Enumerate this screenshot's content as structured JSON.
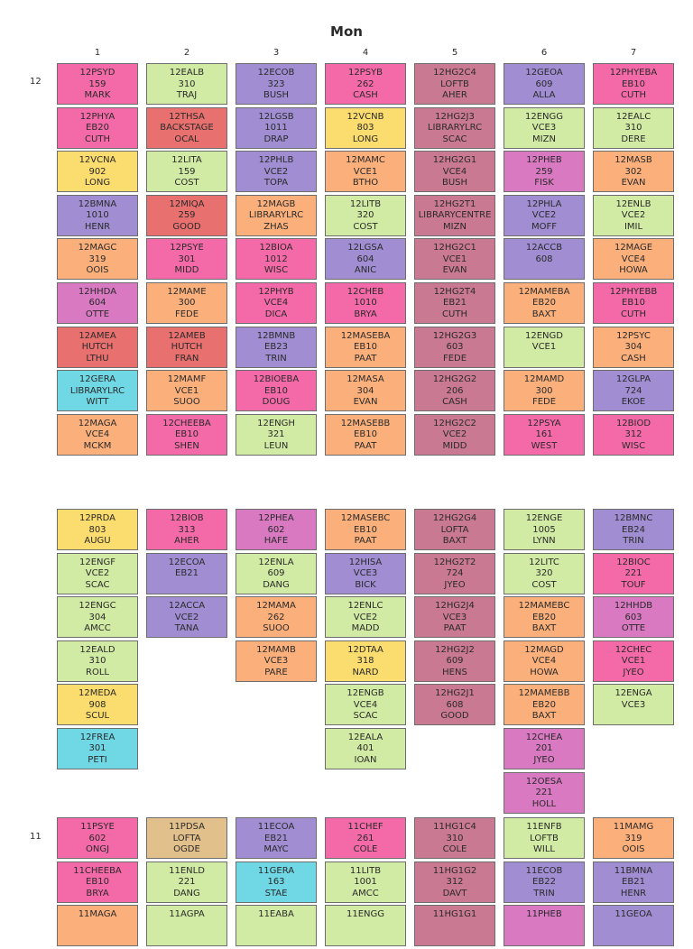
{
  "title": "Mon",
  "colors": {
    "pink": "#f46aa8",
    "green": "#d2eba4",
    "purple": "#a08dd2",
    "salmon": "#e8706e",
    "yellow": "#fbdc6e",
    "orange": "#fbb07c",
    "mauve": "#c97991",
    "magenta": "#d879c2",
    "cyan": "#6fd8e4",
    "tan": "#e2c08c"
  },
  "column_numbers": [
    "1",
    "2",
    "3",
    "4",
    "5",
    "6",
    "7"
  ],
  "groups": [
    {
      "label": "12",
      "columns": [
        [
          {
            "c": "pink",
            "l": [
              "12PSYD",
              "159",
              "MARK"
            ]
          },
          {
            "c": "pink",
            "l": [
              "12PHYA",
              "EB20",
              "CUTH"
            ]
          },
          {
            "c": "yellow",
            "l": [
              "12VCNA",
              "902",
              "LONG"
            ]
          },
          {
            "c": "purple",
            "l": [
              "12BMNA",
              "1010",
              "HENR"
            ]
          },
          {
            "c": "orange",
            "l": [
              "12MAGC",
              "319",
              "OOIS"
            ]
          },
          {
            "c": "magenta",
            "l": [
              "12HHDA",
              "604",
              "OTTE"
            ]
          },
          {
            "c": "salmon",
            "l": [
              "12AMEA",
              "HUTCH",
              "LTHU"
            ]
          },
          {
            "c": "cyan",
            "l": [
              "12GERA",
              "LIBRARYLRC",
              "WITT"
            ]
          },
          {
            "c": "orange",
            "l": [
              "12MAGA",
              "VCE4",
              "MCKM"
            ]
          }
        ],
        [
          {
            "c": "green",
            "l": [
              "12EALB",
              "310",
              "TRAJ"
            ]
          },
          {
            "c": "salmon",
            "l": [
              "12THSA",
              "BACKSTAGE",
              "OCAL"
            ]
          },
          {
            "c": "green",
            "l": [
              "12LITA",
              "159",
              "COST"
            ]
          },
          {
            "c": "salmon",
            "l": [
              "12MIQA",
              "259",
              "GOOD"
            ]
          },
          {
            "c": "pink",
            "l": [
              "12PSYE",
              "301",
              "MIDD"
            ]
          },
          {
            "c": "orange",
            "l": [
              "12MAME",
              "300",
              "FEDE"
            ]
          },
          {
            "c": "salmon",
            "l": [
              "12AMEB",
              "HUTCH",
              "FRAN"
            ]
          },
          {
            "c": "orange",
            "l": [
              "12MAMF",
              "VCE1",
              "SUOO"
            ]
          },
          {
            "c": "pink",
            "l": [
              "12CHEEBA",
              "EB10",
              "SHEN"
            ]
          }
        ],
        [
          {
            "c": "purple",
            "l": [
              "12ECOB",
              "323",
              "BUSH"
            ]
          },
          {
            "c": "purple",
            "l": [
              "12LGSB",
              "1011",
              "DRAP"
            ]
          },
          {
            "c": "purple",
            "l": [
              "12PHLB",
              "VCE2",
              "TOPA"
            ]
          },
          {
            "c": "orange",
            "l": [
              "12MAGB",
              "LIBRARYLRC",
              "ZHAS"
            ]
          },
          {
            "c": "pink",
            "l": [
              "12BIOA",
              "1012",
              "WISC"
            ]
          },
          {
            "c": "pink",
            "l": [
              "12PHYB",
              "VCE4",
              "DICA"
            ]
          },
          {
            "c": "purple",
            "l": [
              "12BMNB",
              "EB23",
              "TRIN"
            ]
          },
          {
            "c": "pink",
            "l": [
              "12BIOEBA",
              "EB10",
              "DOUG"
            ]
          },
          {
            "c": "green",
            "l": [
              "12ENGH",
              "321",
              "LEUN"
            ]
          }
        ],
        [
          {
            "c": "pink",
            "l": [
              "12PSYB",
              "262",
              "CASH"
            ]
          },
          {
            "c": "yellow",
            "l": [
              "12VCNB",
              "803",
              "LONG"
            ]
          },
          {
            "c": "orange",
            "l": [
              "12MAMC",
              "VCE1",
              "BTHO"
            ]
          },
          {
            "c": "green",
            "l": [
              "12LITB",
              "320",
              "COST"
            ]
          },
          {
            "c": "purple",
            "l": [
              "12LGSA",
              "604",
              "ANIC"
            ]
          },
          {
            "c": "pink",
            "l": [
              "12CHEB",
              "1010",
              "BRYA"
            ]
          },
          {
            "c": "orange",
            "l": [
              "12MASEBA",
              "EB10",
              "PAAT"
            ]
          },
          {
            "c": "orange",
            "l": [
              "12MASA",
              "304",
              "EVAN"
            ]
          },
          {
            "c": "orange",
            "l": [
              "12MASEBB",
              "EB10",
              "PAAT"
            ]
          }
        ],
        [
          {
            "c": "mauve",
            "l": [
              "12HG2C4",
              "LOFTB",
              "AHER"
            ]
          },
          {
            "c": "mauve",
            "l": [
              "12HG2J3",
              "LIBRARYLRC",
              "SCAC"
            ]
          },
          {
            "c": "mauve",
            "l": [
              "12HG2G1",
              "VCE4",
              "BUSH"
            ]
          },
          {
            "c": "mauve",
            "l": [
              "12HG2T1",
              "LIBRARYCENTRE",
              "MIZN"
            ]
          },
          {
            "c": "mauve",
            "l": [
              "12HG2C1",
              "VCE1",
              "EVAN"
            ]
          },
          {
            "c": "mauve",
            "l": [
              "12HG2T4",
              "EB21",
              "CUTH"
            ]
          },
          {
            "c": "mauve",
            "l": [
              "12HG2G3",
              "603",
              "FEDE"
            ]
          },
          {
            "c": "mauve",
            "l": [
              "12HG2G2",
              "206",
              "CASH"
            ]
          },
          {
            "c": "mauve",
            "l": [
              "12HG2C2",
              "VCE2",
              "MIDD"
            ]
          }
        ],
        [
          {
            "c": "purple",
            "l": [
              "12GEOA",
              "609",
              "ALLA"
            ]
          },
          {
            "c": "green",
            "l": [
              "12ENGG",
              "VCE3",
              "MIZN"
            ]
          },
          {
            "c": "magenta",
            "l": [
              "12PHEB",
              "259",
              "FISK"
            ]
          },
          {
            "c": "purple",
            "l": [
              "12PHLA",
              "VCE2",
              "MOFF"
            ]
          },
          {
            "c": "purple",
            "l": [
              "12ACCB",
              "608",
              ""
            ]
          },
          {
            "c": "orange",
            "l": [
              "12MAMEBA",
              "EB20",
              "BAXT"
            ]
          },
          {
            "c": "green",
            "l": [
              "12ENGD",
              "VCE1",
              ""
            ]
          },
          {
            "c": "orange",
            "l": [
              "12MAMD",
              "300",
              "FEDE"
            ]
          },
          {
            "c": "pink",
            "l": [
              "12PSYA",
              "161",
              "WEST"
            ]
          }
        ],
        [
          {
            "c": "pink",
            "l": [
              "12PHYEBA",
              "EB10",
              "CUTH"
            ]
          },
          {
            "c": "green",
            "l": [
              "12EALC",
              "310",
              "DERE"
            ]
          },
          {
            "c": "orange",
            "l": [
              "12MASB",
              "302",
              "EVAN"
            ]
          },
          {
            "c": "green",
            "l": [
              "12ENLB",
              "VCE2",
              "IMIL"
            ]
          },
          {
            "c": "orange",
            "l": [
              "12MAGE",
              "VCE4",
              "HOWA"
            ]
          },
          {
            "c": "pink",
            "l": [
              "12PHYEBB",
              "EB10",
              "CUTH"
            ]
          },
          {
            "c": "orange",
            "l": [
              "12PSYC",
              "304",
              "CASH"
            ]
          },
          {
            "c": "purple",
            "l": [
              "12GLPA",
              "724",
              "EKOE"
            ]
          },
          {
            "c": "pink",
            "l": [
              "12BIOD",
              "312",
              "WISC"
            ]
          }
        ]
      ]
    },
    {
      "label": "",
      "columns": [
        [
          {
            "c": "yellow",
            "l": [
              "12PRDA",
              "803",
              "AUGU"
            ]
          },
          {
            "c": "green",
            "l": [
              "12ENGF",
              "VCE2",
              "SCAC"
            ]
          },
          {
            "c": "green",
            "l": [
              "12ENGC",
              "304",
              "AMCC"
            ]
          },
          {
            "c": "green",
            "l": [
              "12EALD",
              "310",
              "ROLL"
            ]
          },
          {
            "c": "yellow",
            "l": [
              "12MEDA",
              "908",
              "SCUL"
            ]
          },
          {
            "c": "cyan",
            "l": [
              "12FREA",
              "301",
              "PETI"
            ]
          }
        ],
        [
          {
            "c": "pink",
            "l": [
              "12BIOB",
              "313",
              "AHER"
            ]
          },
          {
            "c": "purple",
            "l": [
              "12ECOA",
              "EB21",
              ""
            ]
          },
          {
            "c": "purple",
            "l": [
              "12ACCA",
              "VCE2",
              "TANA"
            ]
          }
        ],
        [
          {
            "c": "magenta",
            "l": [
              "12PHEA",
              "602",
              "HAFE"
            ]
          },
          {
            "c": "green",
            "l": [
              "12ENLA",
              "609",
              "DANG"
            ]
          },
          {
            "c": "orange",
            "l": [
              "12MAMA",
              "262",
              "SUOO"
            ]
          },
          {
            "c": "orange",
            "l": [
              "12MAMB",
              "VCE3",
              "PARE"
            ]
          }
        ],
        [
          {
            "c": "orange",
            "l": [
              "12MASEBC",
              "EB10",
              "PAAT"
            ]
          },
          {
            "c": "purple",
            "l": [
              "12HISA",
              "VCE3",
              "BICK"
            ]
          },
          {
            "c": "green",
            "l": [
              "12ENLC",
              "VCE2",
              "MADD"
            ]
          },
          {
            "c": "yellow",
            "l": [
              "12DTAA",
              "318",
              "NARD"
            ]
          },
          {
            "c": "green",
            "l": [
              "12ENGB",
              "VCE4",
              "SCAC"
            ]
          },
          {
            "c": "green",
            "l": [
              "12EALA",
              "401",
              "IOAN"
            ]
          }
        ],
        [
          {
            "c": "mauve",
            "l": [
              "12HG2G4",
              "LOFTA",
              "BAXT"
            ]
          },
          {
            "c": "mauve",
            "l": [
              "12HG2T2",
              "724",
              "JYEO"
            ]
          },
          {
            "c": "mauve",
            "l": [
              "12HG2J4",
              "VCE3",
              "PAAT"
            ]
          },
          {
            "c": "mauve",
            "l": [
              "12HG2J2",
              "609",
              "HENS"
            ]
          },
          {
            "c": "mauve",
            "l": [
              "12HG2J1",
              "608",
              "GOOD"
            ]
          }
        ],
        [
          {
            "c": "green",
            "l": [
              "12ENGE",
              "1005",
              "LYNN"
            ]
          },
          {
            "c": "green",
            "l": [
              "12LITC",
              "320",
              "COST"
            ]
          },
          {
            "c": "orange",
            "l": [
              "12MAMEBC",
              "EB20",
              "BAXT"
            ]
          },
          {
            "c": "orange",
            "l": [
              "12MAGD",
              "VCE4",
              "HOWA"
            ]
          },
          {
            "c": "orange",
            "l": [
              "12MAMEBB",
              "EB20",
              "BAXT"
            ]
          },
          {
            "c": "magenta",
            "l": [
              "12CHEA",
              "201",
              "JYEO"
            ]
          },
          {
            "c": "magenta",
            "l": [
              "12OESA",
              "221",
              "HOLL"
            ]
          }
        ],
        [
          {
            "c": "purple",
            "l": [
              "12BMNC",
              "EB24",
              "TRIN"
            ]
          },
          {
            "c": "pink",
            "l": [
              "12BIOC",
              "221",
              "TOUF"
            ]
          },
          {
            "c": "magenta",
            "l": [
              "12HHDB",
              "603",
              "OTTE"
            ]
          },
          {
            "c": "pink",
            "l": [
              "12CHEC",
              "VCE1",
              "JYEO"
            ]
          },
          {
            "c": "green",
            "l": [
              "12ENGA",
              "VCE3",
              ""
            ]
          }
        ]
      ]
    },
    {
      "label": "11",
      "columns": [
        [
          {
            "c": "pink",
            "l": [
              "11PSYE",
              "602",
              "ONGJ"
            ]
          },
          {
            "c": "pink",
            "l": [
              "11CHEEBA",
              "EB10",
              "BRYA"
            ]
          },
          {
            "c": "orange",
            "l": [
              "11MAGA",
              "",
              ""
            ]
          }
        ],
        [
          {
            "c": "tan",
            "l": [
              "11PDSA",
              "LOFTA",
              "OGDE"
            ]
          },
          {
            "c": "green",
            "l": [
              "11ENLD",
              "221",
              "DANG"
            ]
          },
          {
            "c": "green",
            "l": [
              "11AGPA",
              "",
              ""
            ]
          }
        ],
        [
          {
            "c": "purple",
            "l": [
              "11ECOA",
              "EB21",
              "MAYC"
            ]
          },
          {
            "c": "cyan",
            "l": [
              "11GERA",
              "163",
              "STAE"
            ]
          },
          {
            "c": "green",
            "l": [
              "11EABA",
              "",
              ""
            ]
          }
        ],
        [
          {
            "c": "pink",
            "l": [
              "11CHEF",
              "261",
              "COLE"
            ]
          },
          {
            "c": "green",
            "l": [
              "11LITB",
              "1001",
              "AMCC"
            ]
          },
          {
            "c": "green",
            "l": [
              "11ENGG",
              "",
              ""
            ]
          }
        ],
        [
          {
            "c": "mauve",
            "l": [
              "11HG1C4",
              "310",
              "COLE"
            ]
          },
          {
            "c": "mauve",
            "l": [
              "11HG1G2",
              "312",
              "DAVT"
            ]
          },
          {
            "c": "mauve",
            "l": [
              "11HG1G1",
              "",
              ""
            ]
          }
        ],
        [
          {
            "c": "green",
            "l": [
              "11ENFB",
              "LOFTB",
              "WILL"
            ]
          },
          {
            "c": "purple",
            "l": [
              "11ECOB",
              "EB22",
              "TRIN"
            ]
          },
          {
            "c": "magenta",
            "l": [
              "11PHEB",
              "",
              ""
            ]
          }
        ],
        [
          {
            "c": "orange",
            "l": [
              "11MAMG",
              "319",
              "OOIS"
            ]
          },
          {
            "c": "purple",
            "l": [
              "11BMNA",
              "EB21",
              "HENR"
            ]
          },
          {
            "c": "purple",
            "l": [
              "11GEOA",
              "",
              ""
            ]
          }
        ]
      ]
    }
  ]
}
